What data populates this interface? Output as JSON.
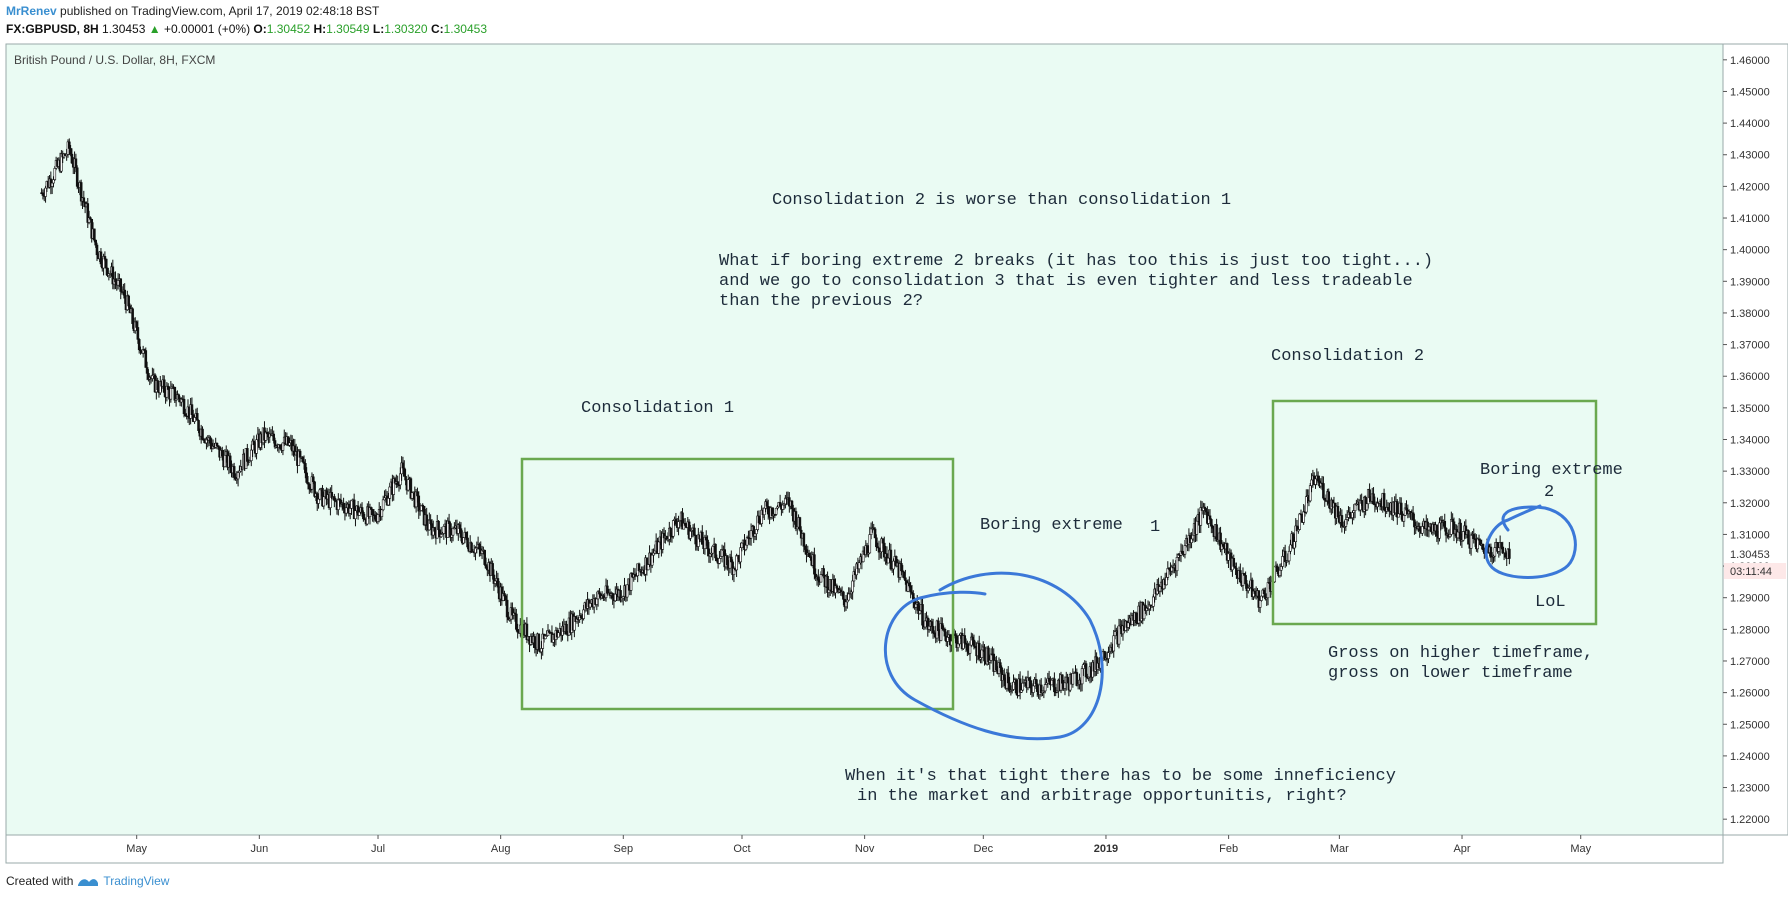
{
  "header": {
    "user": "MrRenev",
    "published_text": "published on TradingView.com, April 17, 2019 02:48:18 BST",
    "symbol": "FX:GBPUSD, 8H",
    "last": "1.30453",
    "change": "+0.00001 (+0%)",
    "o_label": "O:",
    "o_value": "1.30452",
    "h_label": "H:",
    "h_value": "1.30549",
    "l_label": "L:",
    "l_value": "1.30320",
    "c_label": "C:",
    "c_value": "1.30453"
  },
  "footer": {
    "created_with": "Created with",
    "brand": "TradingView"
  },
  "colors": {
    "background": "#eafbf3",
    "box": "#6aa84f",
    "circle": "#3b78d8",
    "candle": "#111111"
  },
  "chart_data": {
    "type": "line",
    "title": "British Pound / U.S. Dollar, 8H, FXCM",
    "ylim": [
      1.215,
      1.465
    ],
    "y_ticks": [
      "1.22000",
      "1.23000",
      "1.24000",
      "1.25000",
      "1.26000",
      "1.27000",
      "1.28000",
      "1.29000",
      "1.30000",
      "1.31000",
      "1.32000",
      "1.33000",
      "1.34000",
      "1.35000",
      "1.36000",
      "1.37000",
      "1.38000",
      "1.39000",
      "1.40000",
      "1.41000",
      "1.42000",
      "1.43000",
      "1.44000",
      "1.45000",
      "1.46000"
    ],
    "x_ticks": [
      "May",
      "Jun",
      "Jul",
      "Aug",
      "Sep",
      "Oct",
      "Nov",
      "Dec",
      "2019",
      "Feb",
      "Mar",
      "Apr",
      "May"
    ],
    "price_label": "1.30453",
    "countdown_label": "03:11:44",
    "x": [
      "2018-04-10",
      "2018-04-17",
      "2018-04-24",
      "2018-05-01",
      "2018-05-08",
      "2018-05-15",
      "2018-05-22",
      "2018-05-29",
      "2018-06-05",
      "2018-06-12",
      "2018-06-19",
      "2018-06-26",
      "2018-07-03",
      "2018-07-10",
      "2018-07-17",
      "2018-07-24",
      "2018-07-31",
      "2018-08-07",
      "2018-08-14",
      "2018-08-21",
      "2018-08-28",
      "2018-09-04",
      "2018-09-11",
      "2018-09-18",
      "2018-09-25",
      "2018-10-02",
      "2018-10-09",
      "2018-10-16",
      "2018-10-23",
      "2018-10-30",
      "2018-11-06",
      "2018-11-13",
      "2018-11-20",
      "2018-11-27",
      "2018-12-04",
      "2018-12-11",
      "2018-12-18",
      "2018-12-25",
      "2019-01-01",
      "2019-01-08",
      "2019-01-15",
      "2019-01-22",
      "2019-01-29",
      "2019-02-05",
      "2019-02-12",
      "2019-02-19",
      "2019-02-26",
      "2019-03-05",
      "2019-03-12",
      "2019-03-19",
      "2019-03-26",
      "2019-04-02",
      "2019-04-09",
      "2019-04-16"
    ],
    "close": [
      1.418,
      1.432,
      1.4,
      1.385,
      1.358,
      1.353,
      1.34,
      1.33,
      1.341,
      1.338,
      1.322,
      1.319,
      1.315,
      1.33,
      1.312,
      1.311,
      1.303,
      1.283,
      1.275,
      1.281,
      1.29,
      1.292,
      1.303,
      1.315,
      1.306,
      1.3,
      1.317,
      1.32,
      1.298,
      1.289,
      1.31,
      1.298,
      1.281,
      1.277,
      1.273,
      1.262,
      1.262,
      1.263,
      1.268,
      1.28,
      1.288,
      1.302,
      1.318,
      1.3,
      1.289,
      1.304,
      1.328,
      1.314,
      1.322,
      1.318,
      1.311,
      1.312,
      1.306,
      1.305
    ],
    "annotations": [
      {
        "text": "Consolidation 2 is worse than consolidation 1"
      },
      {
        "text": "What if boring extreme 2 breaks (it has too this is just too tight...)"
      },
      {
        "text": "and we go to consolidation 3 that is even tighter and less tradeable"
      },
      {
        "text": "than the previous 2?"
      },
      {
        "text": "Consolidation 1"
      },
      {
        "text": "Consolidation 2"
      },
      {
        "text": "Boring extreme"
      },
      {
        "text": "1"
      },
      {
        "text": "Boring extreme"
      },
      {
        "text": "2"
      },
      {
        "text": "LoL"
      },
      {
        "text": "Gross on higher timeframe,"
      },
      {
        "text": "gross on lower timeframe"
      },
      {
        "text": "When it's that tight there has to be some inneficiency"
      },
      {
        "text": "in the market and arbitrage opportunitis, right?"
      }
    ]
  }
}
